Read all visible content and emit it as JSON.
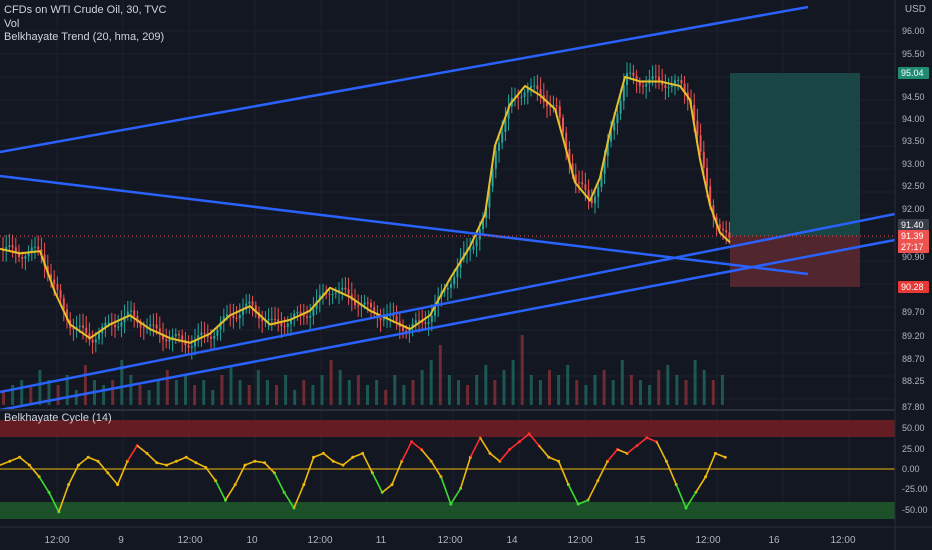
{
  "header": {
    "symbol_line": "CFDs on WTI Crude Oil, 30, TVC",
    "vol_label": "Vol",
    "trend_indicator": "Belkhayate Trend (20, hma, 209)",
    "cycle_indicator": "Belkhayate Cycle (14)",
    "currency": "USD"
  },
  "price_axis": {
    "ticks": [
      "96.00",
      "95.50",
      "94.50",
      "94.00",
      "93.50",
      "93.00",
      "92.50",
      "92.00",
      "90.90",
      "89.70",
      "89.20",
      "88.70",
      "88.25",
      "87.80"
    ],
    "badges": {
      "target": "95.04",
      "entry": "91.40",
      "current": "91.39",
      "countdown": "27:17",
      "stop": "90.28"
    }
  },
  "cycle_axis": {
    "ticks": [
      "50.00",
      "25.00",
      "0.00",
      "-25.00",
      "-50.00"
    ]
  },
  "time_axis": {
    "labels": [
      "12:00",
      "9",
      "12:00",
      "10",
      "12:00",
      "11",
      "12:00",
      "14",
      "12:00",
      "15",
      "12:00",
      "16",
      "12:00"
    ]
  },
  "colors": {
    "background": "#131722",
    "trendline": "#2962ff",
    "bull_candle": "#26a69a",
    "bear_candle": "#ef5350",
    "target_zone": "#1b4e4a",
    "stop_zone": "#5a2830",
    "cycle_upper_band": "#7a1f24",
    "cycle_lower_band": "#1f5a2a",
    "zero_line": "#f0b90b"
  },
  "chart_data": {
    "type": "candlestick",
    "title": "CFDs on WTI Crude Oil, 30, TVC",
    "price_range": [
      87.8,
      96.3
    ],
    "close_path": [
      [
        0,
        91.25
      ],
      [
        20,
        91.15
      ],
      [
        40,
        91.2
      ],
      [
        55,
        90.3
      ],
      [
        70,
        89.6
      ],
      [
        90,
        89.3
      ],
      [
        110,
        89.6
      ],
      [
        130,
        89.8
      ],
      [
        150,
        89.5
      ],
      [
        170,
        89.3
      ],
      [
        190,
        89.2
      ],
      [
        210,
        89.4
      ],
      [
        230,
        89.8
      ],
      [
        250,
        90.0
      ],
      [
        270,
        89.6
      ],
      [
        290,
        89.7
      ],
      [
        310,
        89.9
      ],
      [
        330,
        90.4
      ],
      [
        350,
        90.2
      ],
      [
        370,
        89.9
      ],
      [
        390,
        89.7
      ],
      [
        410,
        89.5
      ],
      [
        430,
        89.8
      ],
      [
        450,
        90.6
      ],
      [
        470,
        91.3
      ],
      [
        485,
        92.0
      ],
      [
        495,
        93.5
      ],
      [
        510,
        94.4
      ],
      [
        525,
        94.8
      ],
      [
        540,
        94.6
      ],
      [
        555,
        94.3
      ],
      [
        565,
        93.5
      ],
      [
        575,
        92.7
      ],
      [
        590,
        92.3
      ],
      [
        600,
        92.8
      ],
      [
        610,
        93.8
      ],
      [
        625,
        95.0
      ],
      [
        640,
        94.9
      ],
      [
        660,
        94.9
      ],
      [
        680,
        94.8
      ],
      [
        690,
        94.5
      ],
      [
        700,
        93.2
      ],
      [
        710,
        92.2
      ],
      [
        720,
        91.6
      ],
      [
        730,
        91.39
      ]
    ],
    "volume_bars": [
      3,
      4,
      5,
      4,
      7,
      5,
      4,
      6,
      3,
      8,
      5,
      4,
      5,
      9,
      6,
      4,
      3,
      5,
      7,
      5,
      6,
      4,
      5,
      3,
      6,
      8,
      5,
      4,
      7,
      5,
      4,
      6,
      3,
      5,
      4,
      6,
      9,
      7,
      5,
      6,
      4,
      5,
      3,
      6,
      4,
      5,
      7,
      9,
      12,
      6,
      5,
      4,
      6,
      8,
      5,
      7,
      9,
      14,
      6,
      5,
      7,
      6,
      8,
      5,
      4,
      6,
      7,
      5,
      9,
      6,
      5,
      4,
      7,
      8,
      6,
      5,
      9,
      7,
      5,
      6
    ],
    "cycle_values": [
      5,
      10,
      15,
      5,
      -10,
      -30,
      -55,
      -20,
      5,
      15,
      10,
      -5,
      -20,
      10,
      30,
      20,
      8,
      5,
      10,
      15,
      8,
      2,
      -15,
      -40,
      -20,
      5,
      10,
      8,
      -5,
      -30,
      -50,
      -20,
      15,
      20,
      10,
      5,
      15,
      20,
      -5,
      -30,
      -20,
      10,
      35,
      25,
      10,
      -10,
      -45,
      -25,
      15,
      40,
      20,
      10,
      25,
      35,
      45,
      30,
      15,
      10,
      -20,
      -45,
      -40,
      -15,
      10,
      25,
      20,
      30,
      40,
      35,
      10,
      -20,
      -50,
      -30,
      -10,
      20,
      15
    ]
  }
}
